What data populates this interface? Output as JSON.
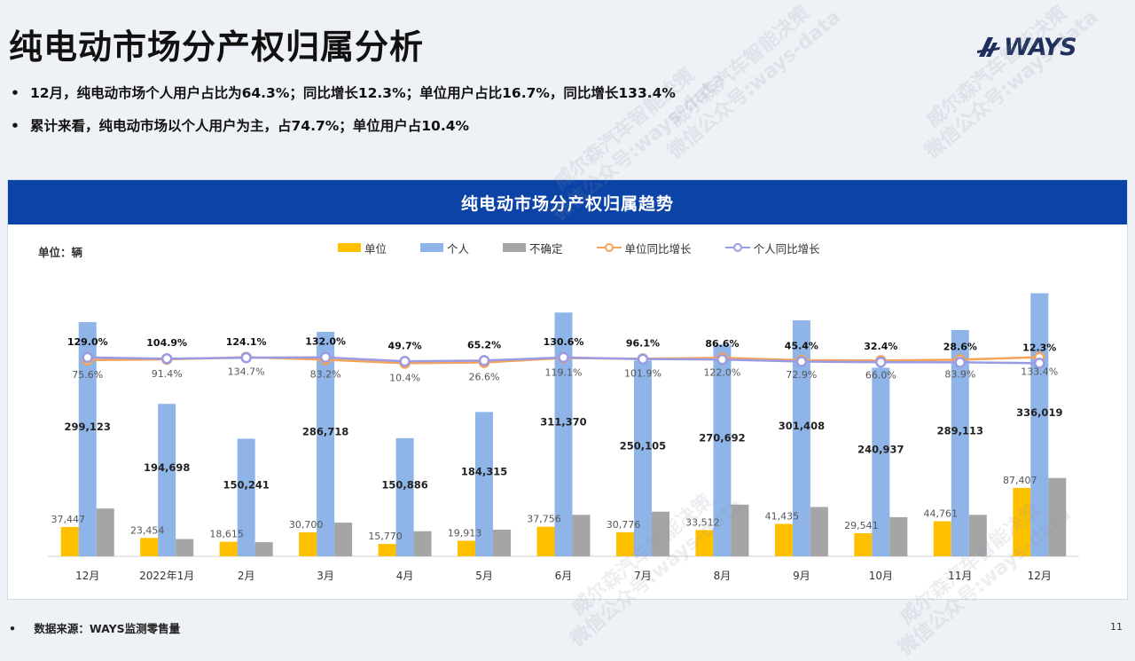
{
  "page": {
    "title": "纯电动市场分产权归属分析",
    "logo_text": "WAYS",
    "bullets": [
      "12月，纯电动市场个人用户占比为64.3%；同比增长12.3%；单位用户占比16.7%，同比增长133.4%",
      "累计来看，纯电动市场以个人用户为主，占74.7%；单位用户占10.4%"
    ],
    "bullet_symbol": "•",
    "source": "数据来源：WAYS监测零售量",
    "page_number": "11",
    "watermark_lines": [
      "威尔森汽车智能决策",
      "微信公众号:ways-data"
    ]
  },
  "chart_data": {
    "type": "bar",
    "title": "纯电动市场分产权归属趋势",
    "unit_label": "单位：辆",
    "categories": [
      "12月",
      "2022年1月",
      "2月",
      "3月",
      "4月",
      "5月",
      "6月",
      "7月",
      "8月",
      "9月",
      "10月",
      "11月",
      "12月"
    ],
    "series": [
      {
        "name": "单位",
        "kind": "bar",
        "color": "#ffc000",
        "values": [
          37447,
          23454,
          18615,
          30700,
          15770,
          19913,
          37756,
          30776,
          33512,
          41435,
          29541,
          44761,
          87407
        ],
        "labels": [
          "37,447",
          "23,454",
          "18,615",
          "30,700",
          "15,770",
          "19,913",
          "37,756",
          "30,776",
          "33,512",
          "41,435",
          "29,541",
          "44,761",
          "87,407"
        ]
      },
      {
        "name": "个人",
        "kind": "bar",
        "color": "#8eb4e8",
        "values": [
          299123,
          194698,
          150241,
          286718,
          150886,
          184315,
          311370,
          250105,
          270692,
          301408,
          240937,
          289113,
          336019
        ],
        "labels": [
          "299,123",
          "194,698",
          "150,241",
          "286,718",
          "150,886",
          "184,315",
          "311,370",
          "250,105",
          "270,692",
          "301,408",
          "240,937",
          "289,113",
          "336,019"
        ]
      },
      {
        "name": "不确定",
        "kind": "bar",
        "color": "#a5a5a5",
        "values": [
          61000,
          22000,
          18000,
          43000,
          32000,
          34000,
          53000,
          57000,
          66000,
          63000,
          50000,
          53000,
          100000
        ]
      },
      {
        "name": "单位同比增长",
        "kind": "line",
        "color": "#f4a35a",
        "values": [
          75.6,
          91.4,
          134.7,
          83.2,
          10.4,
          26.6,
          119.1,
          101.9,
          122.0,
          72.9,
          66.0,
          83.9,
          133.4
        ],
        "labels": [
          "75.6%",
          "91.4%",
          "134.7%",
          "83.2%",
          "10.4%",
          "26.6%",
          "119.1%",
          "101.9%",
          "122.0%",
          "72.9%",
          "66.0%",
          "83.9%",
          "133.4%"
        ]
      },
      {
        "name": "个人同比增长",
        "kind": "line",
        "color": "#9b9be3",
        "values": [
          129.0,
          104.9,
          124.1,
          132.0,
          49.7,
          65.2,
          130.6,
          96.1,
          86.6,
          45.4,
          32.4,
          28.6,
          12.3
        ],
        "labels": [
          "129.0%",
          "104.9%",
          "124.1%",
          "132.0%",
          "49.7%",
          "65.2%",
          "130.6%",
          "96.1%",
          "86.6%",
          "45.4%",
          "32.4%",
          "28.6%",
          "12.3%"
        ]
      }
    ],
    "legend_position": "top",
    "grid": false
  }
}
